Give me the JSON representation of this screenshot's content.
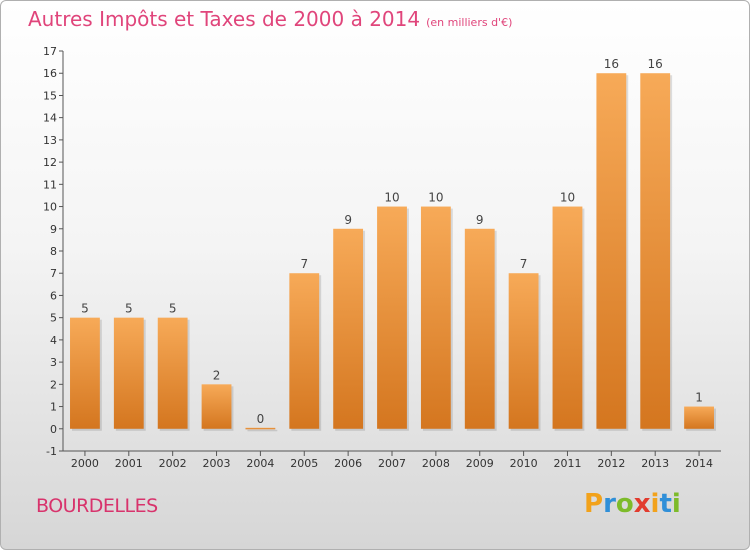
{
  "title": {
    "main": "Autres Impôts et Taxes de 2000 à 2014",
    "unit": "(en milliers d'€)"
  },
  "town": "BOURDELLES",
  "logo": {
    "text": "Proxiti"
  },
  "colors": {
    "title": "#e0457b",
    "bar_top": "#f5a552",
    "bar_bottom": "#d97a22"
  },
  "chart_data": {
    "type": "bar",
    "title": "Autres Impôts et Taxes de 2000 à 2014",
    "subtitle": "(en milliers d'€)",
    "xlabel": "",
    "ylabel": "",
    "categories": [
      "2000",
      "2001",
      "2002",
      "2003",
      "2004",
      "2005",
      "2006",
      "2007",
      "2008",
      "2009",
      "2010",
      "2011",
      "2012",
      "2013",
      "2014"
    ],
    "values": [
      5,
      5,
      5,
      2,
      0,
      7,
      9,
      10,
      10,
      9,
      7,
      10,
      16,
      16,
      1
    ],
    "ylim": [
      -1,
      17
    ],
    "yticks": [
      -1,
      0,
      1,
      2,
      3,
      4,
      5,
      6,
      7,
      8,
      9,
      10,
      11,
      12,
      13,
      14,
      15,
      16,
      17
    ],
    "grid": false,
    "legend": "none"
  }
}
